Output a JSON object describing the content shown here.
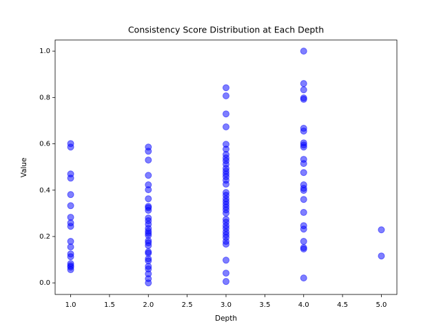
{
  "chart_data": {
    "type": "scatter",
    "title": "Consistency Score Distribution at Each Depth",
    "x_label": "Depth",
    "y_label": "Value",
    "xlim": [
      0.8,
      5.2
    ],
    "ylim": [
      -0.05,
      1.048
    ],
    "xticks": [
      {
        "value": 1,
        "label": "1.0"
      },
      1.5,
      {
        "value": 2,
        "label": "2.0"
      },
      2.5,
      {
        "value": 3,
        "label": "3.0"
      },
      3.5,
      {
        "value": 4,
        "label": "4.0"
      },
      4.5,
      {
        "value": 5,
        "label": "5.0"
      }
    ],
    "yticks": [
      {
        "value": 0,
        "label": "0.0"
      },
      0.2,
      0.4,
      0.6,
      0.8,
      {
        "value": 1,
        "label": "1.0"
      }
    ],
    "grid": false,
    "series": [
      {
        "color": "#0000ff",
        "x": [
          1,
          1,
          1,
          1,
          1,
          1,
          1,
          1,
          1,
          1,
          1,
          1,
          1,
          1,
          1,
          1,
          1,
          2,
          2,
          2,
          2,
          2,
          2,
          2,
          2,
          2,
          2,
          2,
          2,
          2,
          2,
          2,
          2,
          2,
          2,
          2,
          2,
          2,
          2,
          2,
          2,
          2,
          2,
          2,
          2,
          2,
          3,
          3,
          3,
          3,
          3,
          3,
          3,
          3,
          3,
          3,
          3,
          3,
          3,
          3,
          3,
          3,
          3,
          3,
          3,
          3,
          3,
          3,
          3,
          3,
          3,
          3,
          3,
          3,
          3,
          3,
          3,
          3,
          3,
          3,
          3,
          3,
          4,
          4,
          4,
          4,
          4,
          4,
          4,
          4,
          4,
          4,
          4,
          4,
          4,
          4,
          4,
          4,
          4,
          4,
          4,
          4,
          4,
          4,
          4,
          4,
          5,
          5
        ],
        "values": [
          0.601,
          0.586,
          0.47,
          0.452,
          0.381,
          0.333,
          0.283,
          0.259,
          0.244,
          0.179,
          0.155,
          0.125,
          0.113,
          0.083,
          0.074,
          0.068,
          0.057,
          0.586,
          0.568,
          0.53,
          0.464,
          0.423,
          0.402,
          0.363,
          0.33,
          0.324,
          0.313,
          0.28,
          0.268,
          0.253,
          0.235,
          0.223,
          0.214,
          0.205,
          0.182,
          0.173,
          0.161,
          0.134,
          0.128,
          0.104,
          0.095,
          0.071,
          0.06,
          0.039,
          0.018,
          0.0,
          0.842,
          0.807,
          0.729,
          0.673,
          0.598,
          0.577,
          0.554,
          0.539,
          0.527,
          0.512,
          0.494,
          0.482,
          0.47,
          0.458,
          0.443,
          0.426,
          0.39,
          0.378,
          0.363,
          0.351,
          0.339,
          0.327,
          0.315,
          0.301,
          0.274,
          0.262,
          0.247,
          0.235,
          0.22,
          0.208,
          0.196,
          0.179,
          0.167,
          0.098,
          0.042,
          0.006,
          1.0,
          0.86,
          0.833,
          0.798,
          0.792,
          0.667,
          0.655,
          0.604,
          0.595,
          0.586,
          0.533,
          0.515,
          0.476,
          0.423,
          0.408,
          0.399,
          0.36,
          0.304,
          0.247,
          0.232,
          0.179,
          0.152,
          0.146,
          0.021,
          0.229,
          0.116
        ]
      }
    ]
  }
}
